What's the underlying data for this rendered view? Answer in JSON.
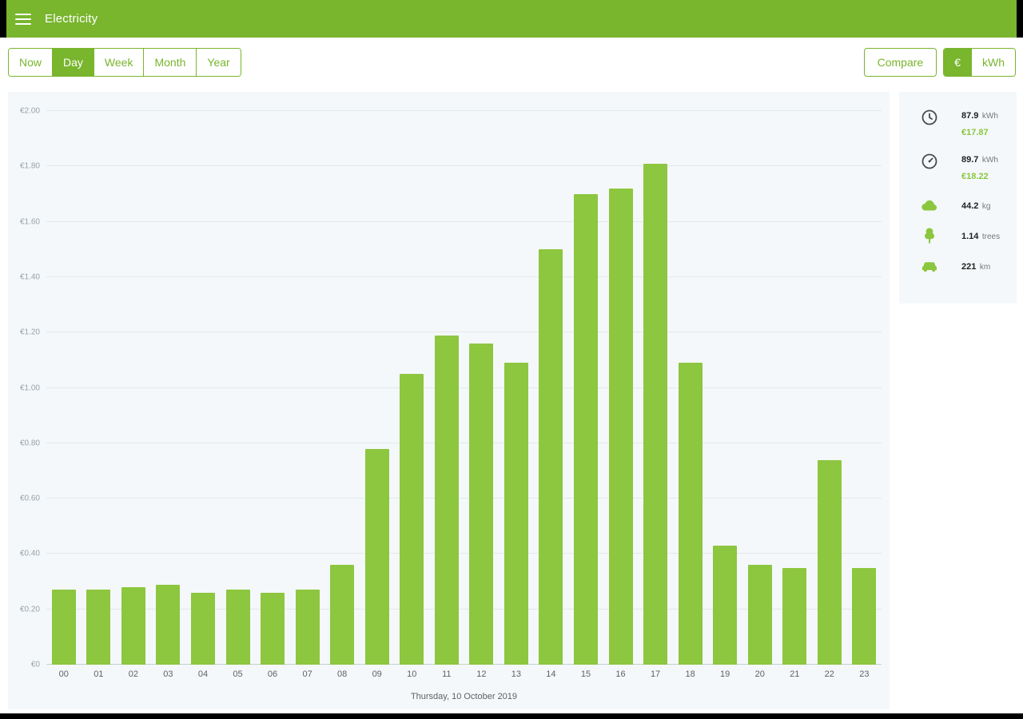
{
  "app": {
    "title": "Electricity"
  },
  "toolbar": {
    "tabs": [
      {
        "label": "Now",
        "name": "now",
        "selected": false
      },
      {
        "label": "Day",
        "name": "day",
        "selected": true
      },
      {
        "label": "Week",
        "name": "week",
        "selected": false
      },
      {
        "label": "Month",
        "name": "month",
        "selected": false
      },
      {
        "label": "Year",
        "name": "year",
        "selected": false
      }
    ],
    "compare_label": "Compare",
    "unit_toggle": [
      {
        "label": "€",
        "name": "euro",
        "selected": true
      },
      {
        "label": "kWh",
        "name": "kwh",
        "selected": false
      }
    ]
  },
  "chart_data": {
    "type": "bar",
    "x": [
      "00",
      "01",
      "02",
      "03",
      "04",
      "05",
      "06",
      "07",
      "08",
      "09",
      "10",
      "11",
      "12",
      "13",
      "14",
      "15",
      "16",
      "17",
      "18",
      "19",
      "20",
      "21",
      "22",
      "23"
    ],
    "values": [
      0.27,
      0.27,
      0.28,
      0.29,
      0.26,
      0.27,
      0.26,
      0.27,
      0.36,
      0.78,
      1.05,
      1.19,
      1.16,
      1.09,
      1.5,
      1.7,
      1.72,
      1.81,
      1.09,
      0.43,
      0.36,
      0.35,
      0.74,
      0.35
    ],
    "title": "",
    "xlabel": "Thursday, 10 October 2019",
    "ylabel": "",
    "ylim": [
      0,
      2
    ],
    "yticks": [
      "€2.00",
      "€1.80",
      "€1.60",
      "€1.40",
      "€1.20",
      "€1.00",
      "€0.80",
      "€0.60",
      "€0.40",
      "€0.20",
      "€0"
    ],
    "grid": true,
    "legend": false,
    "bar_color": "#8dc63f"
  },
  "sidebar": {
    "stats": [
      {
        "icon": "clock-icon",
        "value": "87.9",
        "unit": "kWh",
        "sub": "€17.87"
      },
      {
        "icon": "meter-icon",
        "value": "89.7",
        "unit": "kWh",
        "sub": "€18.22"
      },
      {
        "icon": "co2-cloud-icon",
        "value": "44.2",
        "unit": "kg"
      },
      {
        "icon": "tree-icon",
        "value": "1.14",
        "unit": "trees"
      },
      {
        "icon": "car-icon",
        "value": "221",
        "unit": "km"
      }
    ]
  },
  "colors": {
    "primary": "#79b52d",
    "bar": "#8dc63f",
    "accent_text": "#8bc63f",
    "panel_bg": "#f4f8fa"
  }
}
